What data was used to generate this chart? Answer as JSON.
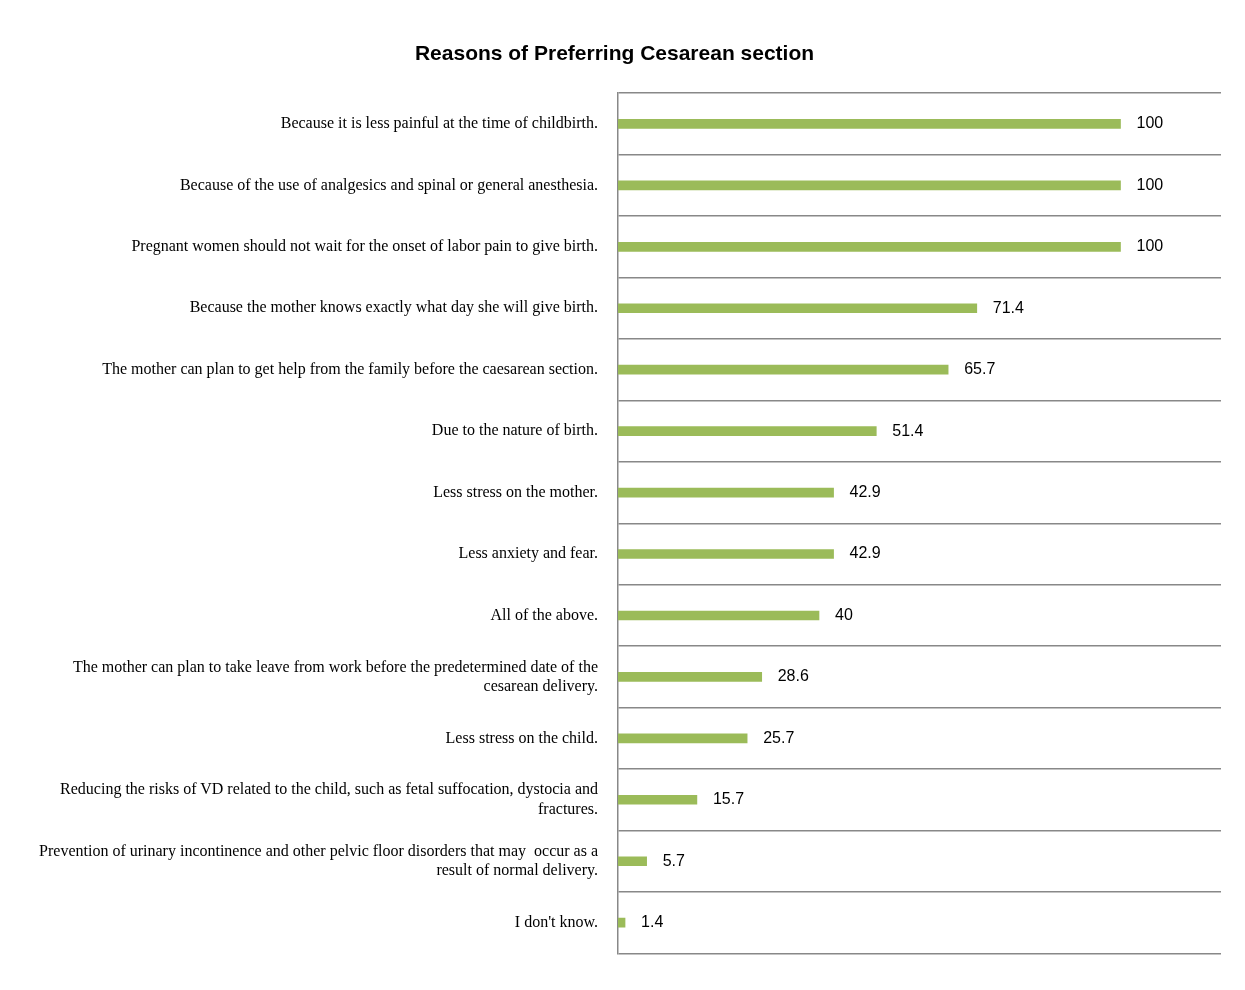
{
  "chart_data": {
    "type": "bar",
    "orientation": "horizontal",
    "title": "Reasons of Preferring Cesarean section",
    "categories": [
      "Because it is less painful at the time of childbirth.",
      "Because of the use of analgesics and spinal or general anesthesia.",
      "Pregnant women should not wait for the onset of labor pain to give birth.",
      "Because the mother knows exactly what day she will give birth.",
      "The mother can plan to get help from the family before the caesarean section.",
      "Due to the nature of birth.",
      "Less stress on the mother.",
      "Less anxiety and fear.",
      "All of the above.",
      "The mother can plan to take leave from work before the predetermined date of the cesarean delivery.",
      "Less stress on the child.",
      "Reducing the risks of VD related to the child, such as fetal suffocation, dystocia and fractures.",
      "Prevention of urinary incontinence and other pelvic floor disorders that may  occur as a result of normal delivery.",
      "I don't know."
    ],
    "values": [
      100,
      100,
      100,
      71.4,
      65.7,
      51.4,
      42.9,
      42.9,
      40,
      28.6,
      25.7,
      15.7,
      5.7,
      1.4
    ],
    "color": "#9bbb59",
    "xlim": [
      0,
      120
    ],
    "data_labels": true,
    "grid": "y",
    "tick_labels": "y",
    "legend": false
  }
}
